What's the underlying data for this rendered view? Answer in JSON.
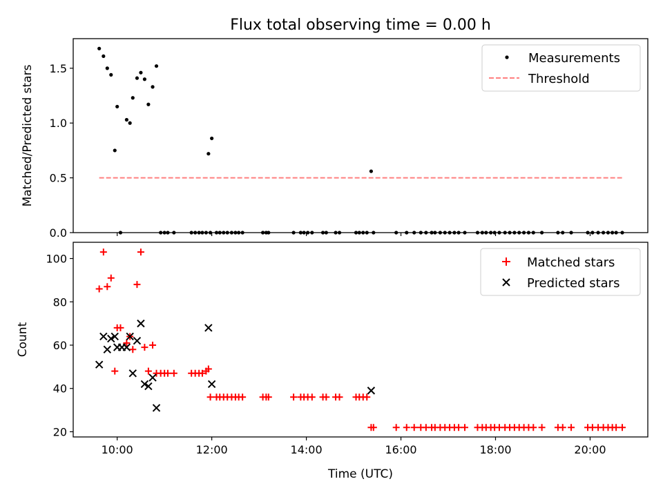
{
  "title": "Flux total observing time = 0.00 h",
  "colors": {
    "measurement": "#000000",
    "threshold": "#ff7f7f",
    "matched": "#ff0000",
    "predicted": "#000000"
  },
  "chart_data": [
    {
      "type": "scatter",
      "title": "Flux total observing time = 0.00 h",
      "xlabel": "",
      "ylabel": "Matched/Predicted stars",
      "xlim": [
        9.07,
        21.22
      ],
      "ylim": [
        0,
        1.77
      ],
      "yticks": [
        0.0,
        0.5,
        1.0,
        1.5
      ],
      "ytick_labels": [
        "0.0",
        "0.5",
        "1.0",
        "1.5"
      ],
      "legend_position": "top-right",
      "legend": [
        "Measurements",
        "Threshold"
      ],
      "series": [
        {
          "name": "Measurements",
          "marker": "dot",
          "x": [
            9.62,
            9.71,
            9.79,
            9.87,
            9.95,
            10.0,
            10.2,
            10.27,
            10.33,
            10.42,
            10.5,
            10.58,
            10.66,
            10.75,
            10.83,
            11.93,
            12.0,
            15.37,
            10.07,
            10.92,
            11.0,
            11.07,
            11.2,
            11.57,
            11.65,
            11.73,
            11.8,
            11.88,
            11.97,
            12.1,
            12.17,
            12.25,
            12.33,
            12.42,
            12.5,
            12.57,
            12.65,
            13.08,
            13.15,
            13.2,
            13.73,
            13.88,
            13.95,
            14.03,
            14.12,
            14.35,
            14.42,
            14.62,
            14.7,
            15.05,
            15.12,
            15.2,
            15.28,
            15.42,
            15.9,
            16.12,
            16.28,
            16.42,
            16.53,
            16.65,
            16.72,
            16.83,
            16.93,
            17.03,
            17.13,
            17.22,
            17.35,
            17.62,
            17.72,
            17.8,
            17.9,
            17.98,
            18.08,
            18.2,
            18.3,
            18.4,
            18.5,
            18.6,
            18.7,
            18.8,
            18.98,
            19.32,
            19.42,
            19.6,
            19.95,
            20.05,
            20.17,
            20.28,
            20.38,
            20.47,
            20.55,
            20.68
          ],
          "y": [
            1.68,
            1.61,
            1.5,
            1.44,
            0.75,
            1.15,
            1.03,
            1.0,
            1.23,
            1.41,
            1.46,
            1.4,
            1.17,
            1.33,
            1.52,
            0.72,
            0.86,
            0.56,
            0,
            0,
            0,
            0,
            0,
            0,
            0,
            0,
            0,
            0,
            0,
            0,
            0,
            0,
            0,
            0,
            0,
            0,
            0,
            0,
            0,
            0,
            0,
            0,
            0,
            0,
            0,
            0,
            0,
            0,
            0,
            0,
            0,
            0,
            0,
            0,
            0,
            0,
            0,
            0,
            0,
            0,
            0,
            0,
            0,
            0,
            0,
            0,
            0,
            0,
            0,
            0,
            0,
            0,
            0,
            0,
            0,
            0,
            0,
            0,
            0,
            0,
            0,
            0,
            0,
            0,
            0,
            0,
            0,
            0,
            0,
            0,
            0,
            0
          ]
        },
        {
          "name": "Threshold",
          "style": "dashed",
          "x": [
            9.62,
            20.68
          ],
          "y": [
            0.5,
            0.5
          ]
        }
      ]
    },
    {
      "type": "scatter",
      "title": "",
      "xlabel": "Time (UTC)",
      "ylabel": "Count",
      "xlim": [
        9.07,
        21.22
      ],
      "ylim": [
        17.6,
        107.5
      ],
      "xticks": [
        10,
        12,
        14,
        16,
        18,
        20
      ],
      "xtick_labels": [
        "10:00",
        "12:00",
        "14:00",
        "16:00",
        "18:00",
        "20:00"
      ],
      "yticks": [
        20,
        40,
        60,
        80,
        100
      ],
      "ytick_labels": [
        "20",
        "40",
        "60",
        "80",
        "100"
      ],
      "legend_position": "top-right",
      "legend": [
        "Matched stars",
        "Predicted stars"
      ],
      "series": [
        {
          "name": "Matched stars",
          "marker": "plus",
          "x": [
            9.62,
            9.71,
            9.79,
            9.87,
            9.95,
            10.0,
            10.07,
            10.2,
            10.27,
            10.33,
            10.42,
            10.5,
            10.58,
            10.66,
            10.75,
            10.83,
            10.92,
            11.0,
            11.07,
            11.2,
            11.57,
            11.65,
            11.73,
            11.8,
            11.88,
            11.93,
            11.97,
            12.1,
            12.17,
            12.25,
            12.33,
            12.42,
            12.5,
            12.57,
            12.65,
            13.08,
            13.15,
            13.2,
            13.73,
            13.88,
            13.95,
            14.03,
            14.12,
            14.35,
            14.42,
            14.62,
            14.7,
            15.05,
            15.12,
            15.2,
            15.28,
            15.37,
            15.42,
            15.9,
            16.12,
            16.28,
            16.42,
            16.53,
            16.65,
            16.72,
            16.83,
            16.93,
            17.03,
            17.13,
            17.22,
            17.35,
            17.62,
            17.72,
            17.8,
            17.9,
            17.98,
            18.08,
            18.2,
            18.3,
            18.4,
            18.5,
            18.6,
            18.7,
            18.8,
            18.98,
            19.32,
            19.42,
            19.6,
            19.95,
            20.05,
            20.17,
            20.28,
            20.38,
            20.47,
            20.55,
            20.68
          ],
          "y": [
            86,
            103,
            87,
            91,
            48,
            68,
            68,
            61,
            64,
            58,
            88,
            103,
            59,
            48,
            60,
            47,
            47,
            47,
            47,
            47,
            47,
            47,
            47,
            47,
            48,
            49,
            36,
            36,
            36,
            36,
            36,
            36,
            36,
            36,
            36,
            36,
            36,
            36,
            36,
            36,
            36,
            36,
            36,
            36,
            36,
            36,
            36,
            36,
            36,
            36,
            36,
            22,
            22,
            22,
            22,
            22,
            22,
            22,
            22,
            22,
            22,
            22,
            22,
            22,
            22,
            22,
            22,
            22,
            22,
            22,
            22,
            22,
            22,
            22,
            22,
            22,
            22,
            22,
            22,
            22,
            22,
            22,
            22,
            22,
            22,
            22,
            22,
            22,
            22,
            22,
            22
          ]
        },
        {
          "name": "Predicted stars",
          "marker": "x",
          "x": [
            9.62,
            9.71,
            9.79,
            9.87,
            9.95,
            10.0,
            10.1,
            10.2,
            10.27,
            10.33,
            10.42,
            10.5,
            10.58,
            10.66,
            10.75,
            10.83,
            11.93,
            12.0,
            15.37
          ],
          "y": [
            51,
            64,
            58,
            63,
            64,
            59,
            59,
            59,
            64,
            47,
            62,
            70,
            42,
            41,
            45,
            31,
            68,
            42,
            39
          ]
        }
      ]
    }
  ]
}
